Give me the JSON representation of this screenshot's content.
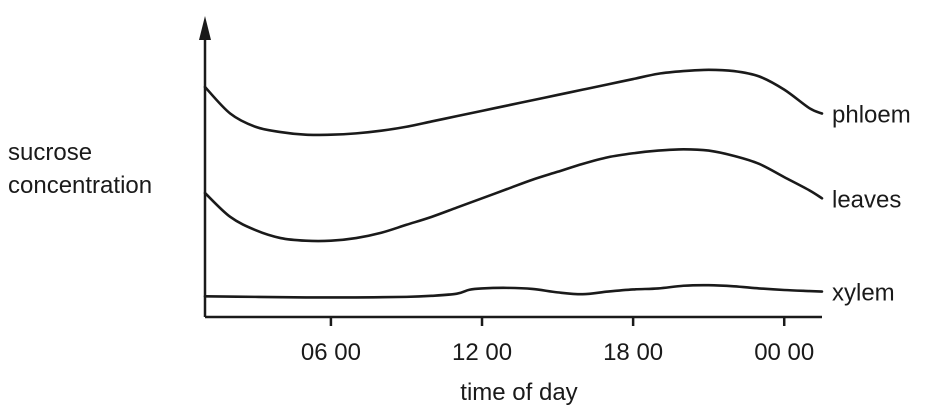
{
  "chart_data": {
    "type": "line",
    "title": "",
    "xlabel": "time of day",
    "ylabel": [
      "sucrose",
      "concentration"
    ],
    "x_ticks": [
      "06 00",
      "12 00",
      "18 00",
      "00 00"
    ],
    "x_tick_values": [
      6,
      12,
      18,
      24
    ],
    "x_range": [
      1,
      25.5
    ],
    "y_range": [
      0,
      100
    ],
    "y_ticks": [],
    "grid": false,
    "legend": "labels at right end of each line",
    "series": [
      {
        "name": "phloem",
        "x": [
          1,
          2,
          3,
          4,
          5,
          6,
          7,
          8,
          9,
          10,
          11,
          12,
          13,
          14,
          15,
          16,
          17,
          18,
          19,
          20,
          21,
          22,
          23,
          24,
          25,
          25.5
        ],
        "y": [
          80,
          70,
          65,
          63,
          62,
          62,
          62.5,
          63.5,
          65,
          67,
          69,
          71,
          73,
          75,
          77,
          79,
          81,
          83,
          85,
          86,
          86.5,
          86,
          84,
          79,
          72,
          70
        ]
      },
      {
        "name": "leaves",
        "x": [
          1,
          2,
          3,
          4,
          5,
          6,
          7,
          8,
          9,
          10,
          11,
          12,
          13,
          14,
          15,
          16,
          17,
          18,
          19,
          20,
          21,
          22,
          23,
          24,
          25,
          25.5
        ],
        "y": [
          40,
          31,
          26,
          23,
          22,
          22,
          23,
          25,
          28,
          31,
          34.5,
          38,
          41.5,
          45,
          48,
          51,
          53.5,
          55,
          56,
          56.5,
          56,
          54,
          51,
          46,
          41,
          38
        ]
      },
      {
        "name": "xylem",
        "x": [
          1,
          3,
          5,
          7,
          9,
          10,
          11,
          11.5,
          12,
          13,
          14,
          15,
          16,
          17,
          18,
          19,
          20,
          21,
          22,
          23,
          24,
          25,
          25.5
        ],
        "y": [
          1,
          0.8,
          0.6,
          0.6,
          0.8,
          1.2,
          2,
          3.5,
          4,
          4.2,
          3.8,
          2.5,
          1.8,
          2.8,
          3.6,
          4,
          5,
          5.2,
          4.8,
          4,
          3.4,
          3,
          2.8
        ]
      }
    ]
  }
}
